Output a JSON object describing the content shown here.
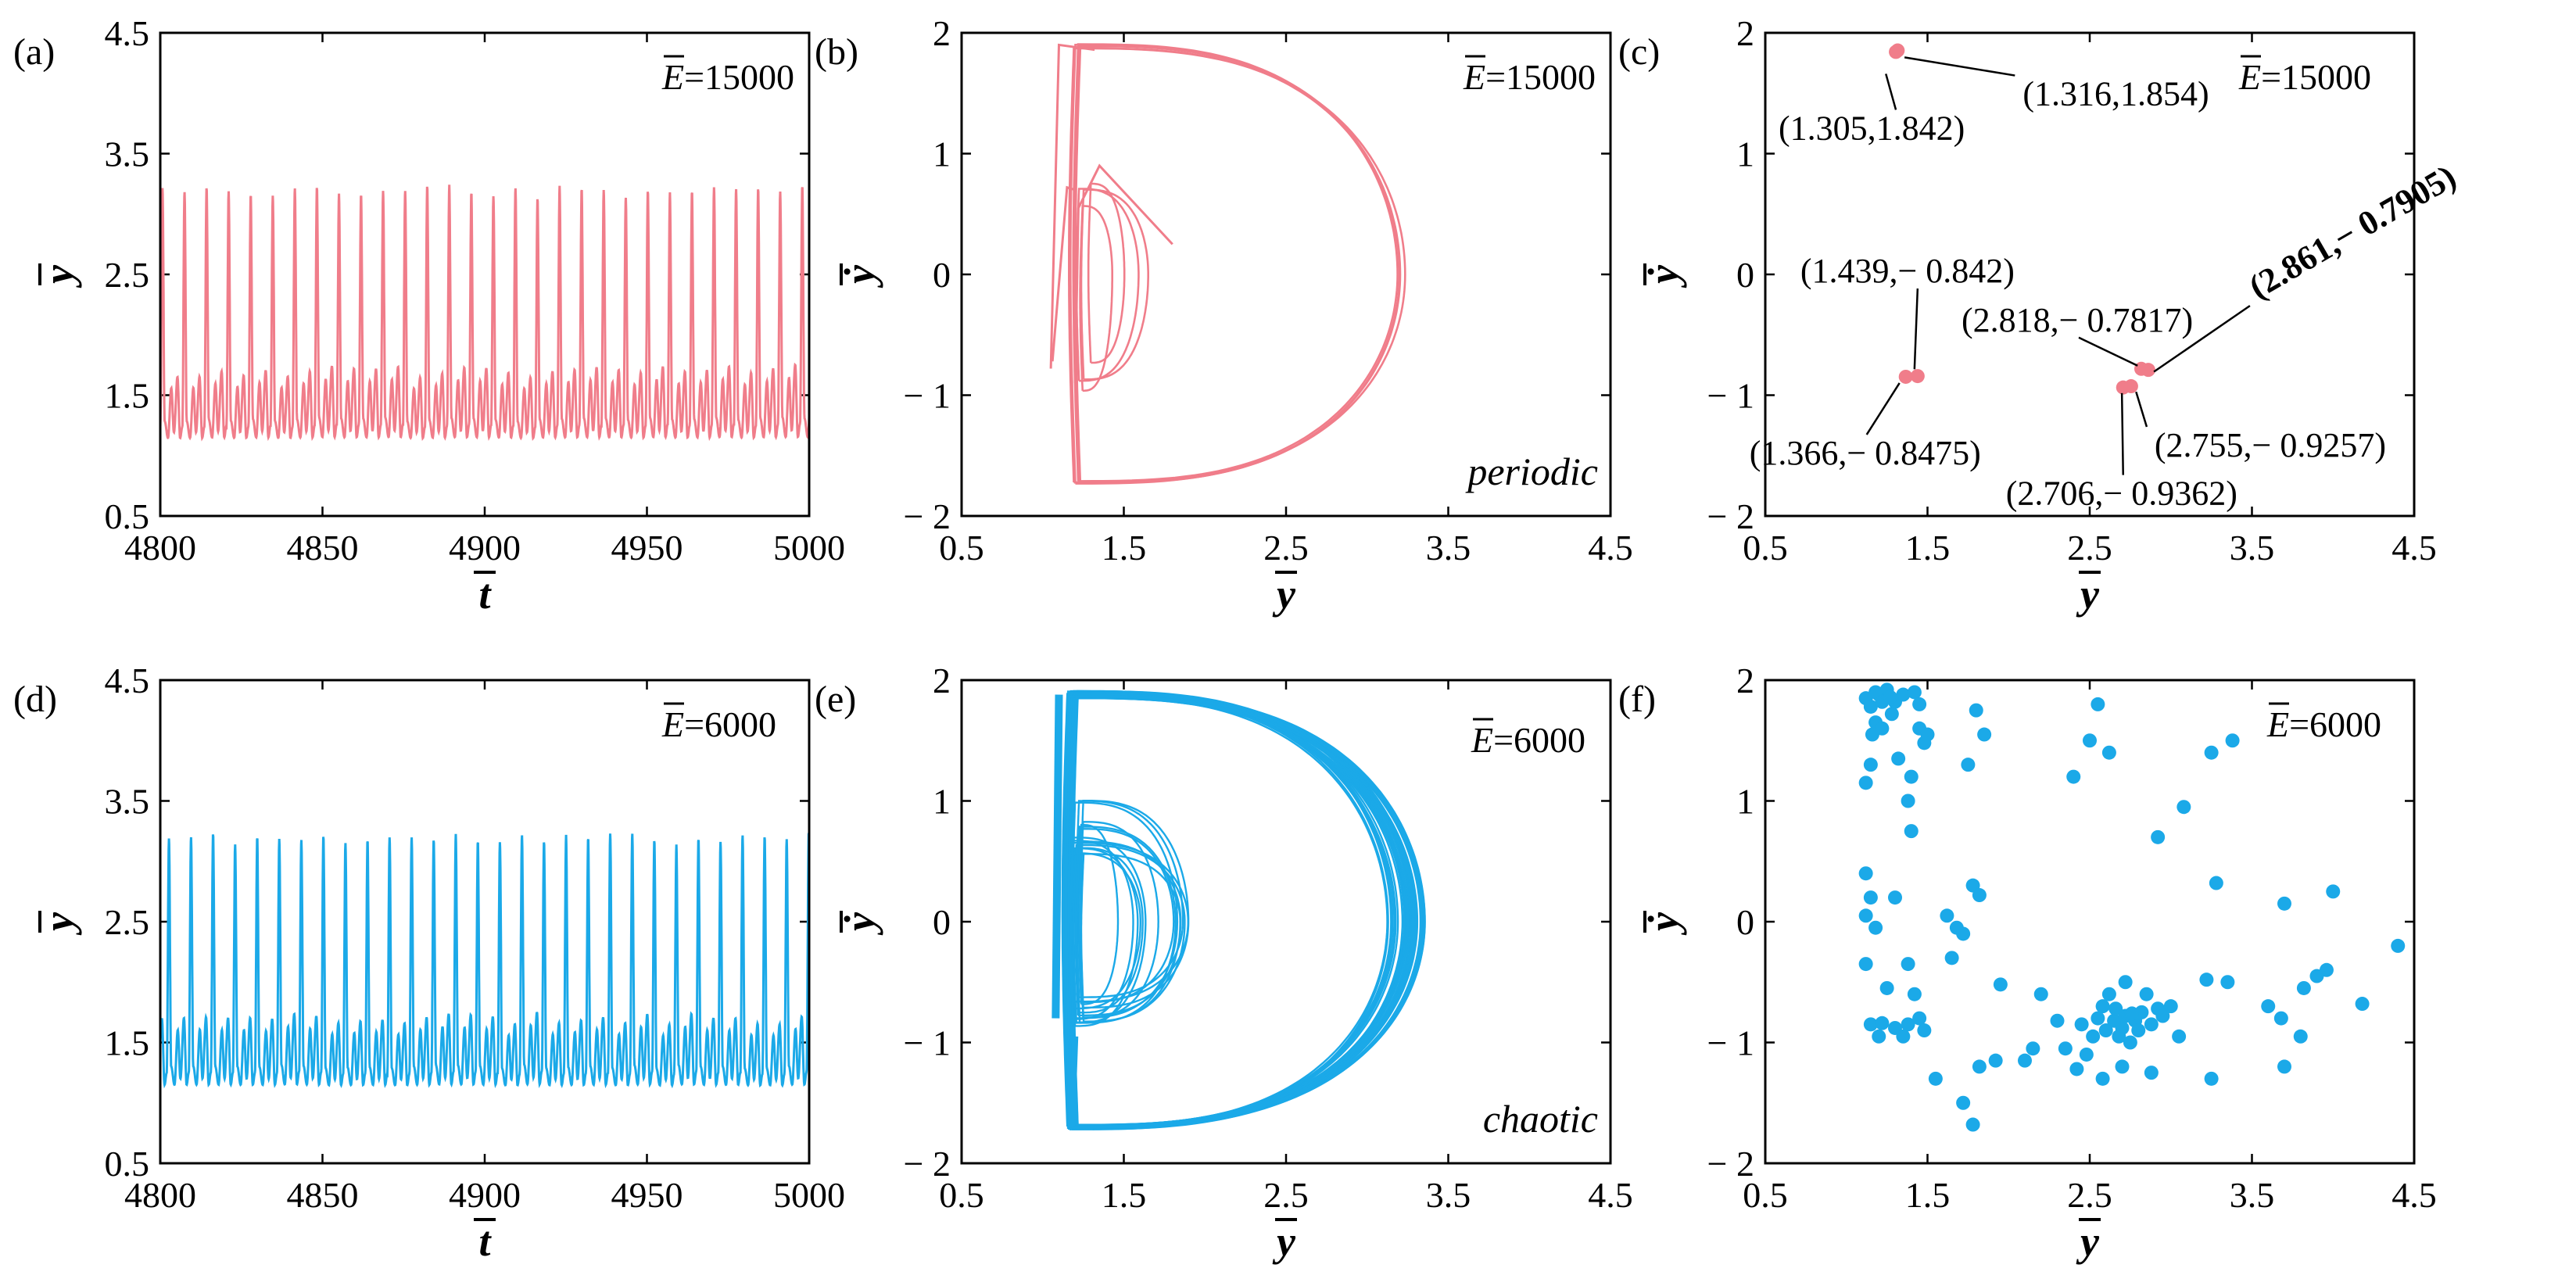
{
  "colors": {
    "periodic": "#F07D8A",
    "chaotic": "#1BA9E8",
    "axis": "#000000"
  },
  "chart_data": [
    {
      "id": "a",
      "type": "line",
      "panel_label": "(a)",
      "xlabel": "t",
      "ylabel": "y",
      "xlim": [
        4800,
        5000
      ],
      "ylim": [
        0.5,
        4.5
      ],
      "xticks": [
        "4800",
        "4850",
        "4900",
        "4950",
        "5000"
      ],
      "yticks": [
        "0.5",
        "1.5",
        "2.5",
        "3.5",
        "4.5"
      ],
      "annotation": {
        "symbol": "E",
        "value": "=15000"
      },
      "series_desc": {
        "period": 6.8,
        "peak": 3.25,
        "trough": 1.15,
        "start": 4800
      },
      "color_key": "periodic"
    },
    {
      "id": "b",
      "type": "line",
      "panel_label": "(b)",
      "xlabel": "y",
      "ylabel": "ẏ",
      "xlim": [
        0.5,
        4.5
      ],
      "ylim": [
        -2,
        2
      ],
      "xticks": [
        "0.5",
        "1.5",
        "2.5",
        "3.5",
        "4.5"
      ],
      "yticks": [
        "2",
        "1",
        "0",
        "− 1",
        "− 2"
      ],
      "annotation": {
        "symbol": "E",
        "value": "=15000"
      },
      "regime": "periodic",
      "color_key": "periodic"
    },
    {
      "id": "c",
      "type": "scatter",
      "panel_label": "(c)",
      "xlabel": "y",
      "ylabel": "ẏ",
      "xlim": [
        0.5,
        4.5
      ],
      "ylim": [
        -2,
        2
      ],
      "xticks": [
        "0.5",
        "1.5",
        "2.5",
        "3.5",
        "4.5"
      ],
      "yticks": [
        "2",
        "1",
        "0",
        "− 1",
        "− 2"
      ],
      "annotation": {
        "symbol": "E",
        "value": "=15000"
      },
      "points": [
        {
          "x": 1.305,
          "y": 1.842,
          "label": "(1.305,1.842)"
        },
        {
          "x": 1.316,
          "y": 1.854,
          "label": "(1.316,1.854)"
        },
        {
          "x": 1.439,
          "y": -0.842,
          "label": "(1.439,− 0.842)"
        },
        {
          "x": 1.366,
          "y": -0.8475,
          "label": "(1.366,− 0.8475)"
        },
        {
          "x": 2.818,
          "y": -0.7817,
          "label": "(2.818,− 0.7817)"
        },
        {
          "x": 2.861,
          "y": -0.7905,
          "label": "(2.861,− 0.7905)"
        },
        {
          "x": 2.755,
          "y": -0.9257,
          "label": "(2.755,− 0.9257)"
        },
        {
          "x": 2.706,
          "y": -0.9362,
          "label": "(2.706,− 0.9362)"
        }
      ],
      "color_key": "periodic"
    },
    {
      "id": "d",
      "type": "line",
      "panel_label": "(d)",
      "xlabel": "t",
      "ylabel": "y",
      "xlim": [
        4800,
        5000
      ],
      "ylim": [
        0.5,
        4.5
      ],
      "xticks": [
        "4800",
        "4850",
        "4900",
        "4950",
        "5000"
      ],
      "yticks": [
        "0.5",
        "1.5",
        "2.5",
        "3.5",
        "4.5"
      ],
      "annotation": {
        "symbol": "E",
        "value": "=6000"
      },
      "series_desc": {
        "period": 6.8,
        "peak": 3.25,
        "trough": 1.12,
        "start": 4802
      },
      "color_key": "chaotic"
    },
    {
      "id": "e",
      "type": "line",
      "panel_label": "(e)",
      "xlabel": "y",
      "ylabel": "ẏ",
      "xlim": [
        0.5,
        4.5
      ],
      "ylim": [
        -2,
        2
      ],
      "xticks": [
        "0.5",
        "1.5",
        "2.5",
        "3.5",
        "4.5"
      ],
      "yticks": [
        "2",
        "1",
        "0",
        "− 1",
        "− 2"
      ],
      "annotation": {
        "symbol": "E",
        "value": "=6000"
      },
      "regime": "chaotic",
      "color_key": "chaotic"
    },
    {
      "id": "f",
      "type": "scatter",
      "panel_label": "(f)",
      "xlabel": "y",
      "ylabel": "ẏ",
      "xlim": [
        0.5,
        4.5
      ],
      "ylim": [
        -2,
        2
      ],
      "xticks": [
        "0.5",
        "1.5",
        "2.5",
        "3.5",
        "4.5"
      ],
      "yticks": [
        "2",
        "1",
        "0",
        "− 1",
        "− 2"
      ],
      "annotation": {
        "symbol": "E",
        "value": "=6000"
      },
      "points": [
        [
          1.12,
          1.85
        ],
        [
          1.15,
          1.78
        ],
        [
          1.2,
          1.88
        ],
        [
          1.25,
          1.92
        ],
        [
          1.3,
          1.82
        ],
        [
          1.18,
          1.65
        ],
        [
          1.22,
          1.6
        ],
        [
          1.28,
          1.72
        ],
        [
          1.35,
          1.88
        ],
        [
          1.42,
          1.9
        ],
        [
          1.45,
          1.6
        ],
        [
          1.5,
          1.55
        ],
        [
          1.4,
          1.2
        ],
        [
          1.48,
          1.48
        ],
        [
          1.32,
          1.35
        ],
        [
          1.15,
          1.3
        ],
        [
          1.12,
          1.15
        ],
        [
          1.38,
          1.0
        ],
        [
          1.4,
          0.75
        ],
        [
          1.8,
          1.75
        ],
        [
          1.85,
          1.55
        ],
        [
          1.75,
          1.3
        ],
        [
          2.55,
          1.8
        ],
        [
          2.5,
          1.5
        ],
        [
          2.62,
          1.4
        ],
        [
          2.4,
          1.2
        ],
        [
          3.08,
          0.95
        ],
        [
          2.92,
          0.7
        ],
        [
          3.25,
          1.4
        ],
        [
          3.38,
          1.5
        ],
        [
          1.12,
          0.4
        ],
        [
          1.15,
          0.2
        ],
        [
          1.12,
          0.05
        ],
        [
          1.18,
          -0.05
        ],
        [
          1.3,
          0.2
        ],
        [
          1.62,
          0.05
        ],
        [
          1.68,
          -0.05
        ],
        [
          1.78,
          0.3
        ],
        [
          1.82,
          0.22
        ],
        [
          1.72,
          -0.1
        ],
        [
          3.28,
          0.32
        ],
        [
          3.7,
          0.15
        ],
        [
          4.0,
          0.25
        ],
        [
          4.4,
          -0.2
        ],
        [
          1.12,
          -0.35
        ],
        [
          1.38,
          -0.35
        ],
        [
          1.65,
          -0.3
        ],
        [
          1.95,
          -0.52
        ],
        [
          2.2,
          -0.6
        ],
        [
          2.45,
          -0.85
        ],
        [
          2.52,
          -0.95
        ],
        [
          2.6,
          -0.9
        ],
        [
          2.65,
          -0.82
        ],
        [
          2.7,
          -0.88
        ],
        [
          2.72,
          -0.78
        ],
        [
          2.78,
          -0.82
        ],
        [
          2.82,
          -0.75
        ],
        [
          2.88,
          -0.85
        ],
        [
          2.92,
          -0.72
        ],
        [
          2.58,
          -0.7
        ],
        [
          2.62,
          -0.6
        ],
        [
          2.72,
          -0.5
        ],
        [
          2.85,
          -0.6
        ],
        [
          2.95,
          -0.78
        ],
        [
          3.0,
          -0.7
        ],
        [
          2.55,
          -0.8
        ],
        [
          2.68,
          -0.95
        ],
        [
          2.75,
          -1.0
        ],
        [
          2.48,
          -1.1
        ],
        [
          2.3,
          -0.82
        ],
        [
          2.15,
          -1.05
        ],
        [
          2.1,
          -1.15
        ],
        [
          1.15,
          -0.85
        ],
        [
          1.22,
          -0.84
        ],
        [
          1.3,
          -0.88
        ],
        [
          1.38,
          -0.85
        ],
        [
          1.45,
          -0.8
        ],
        [
          1.48,
          -0.9
        ],
        [
          1.2,
          -0.95
        ],
        [
          1.35,
          -0.95
        ],
        [
          1.42,
          -0.6
        ],
        [
          1.25,
          -0.55
        ],
        [
          1.55,
          -1.3
        ],
        [
          1.72,
          -1.5
        ],
        [
          1.78,
          -1.68
        ],
        [
          1.82,
          -1.2
        ],
        [
          1.92,
          -1.15
        ],
        [
          2.42,
          -1.22
        ],
        [
          2.58,
          -1.3
        ],
        [
          2.7,
          -1.2
        ],
        [
          2.88,
          -1.25
        ],
        [
          3.25,
          -1.3
        ],
        [
          3.22,
          -0.48
        ],
        [
          3.35,
          -0.5
        ],
        [
          3.6,
          -0.7
        ],
        [
          3.68,
          -0.8
        ],
        [
          3.7,
          -1.2
        ],
        [
          3.8,
          -0.95
        ],
        [
          3.82,
          -0.55
        ],
        [
          3.9,
          -0.45
        ],
        [
          3.96,
          -0.4
        ],
        [
          4.18,
          -0.68
        ],
        [
          1.18,
          1.9
        ],
        [
          1.22,
          1.82
        ],
        [
          1.27,
          1.86
        ],
        [
          1.16,
          1.55
        ],
        [
          1.45,
          1.8
        ],
        [
          2.8,
          -0.9
        ],
        [
          2.76,
          -0.76
        ],
        [
          2.66,
          -0.72
        ],
        [
          3.05,
          -0.95
        ],
        [
          2.35,
          -1.05
        ]
      ],
      "color_key": "chaotic"
    }
  ]
}
